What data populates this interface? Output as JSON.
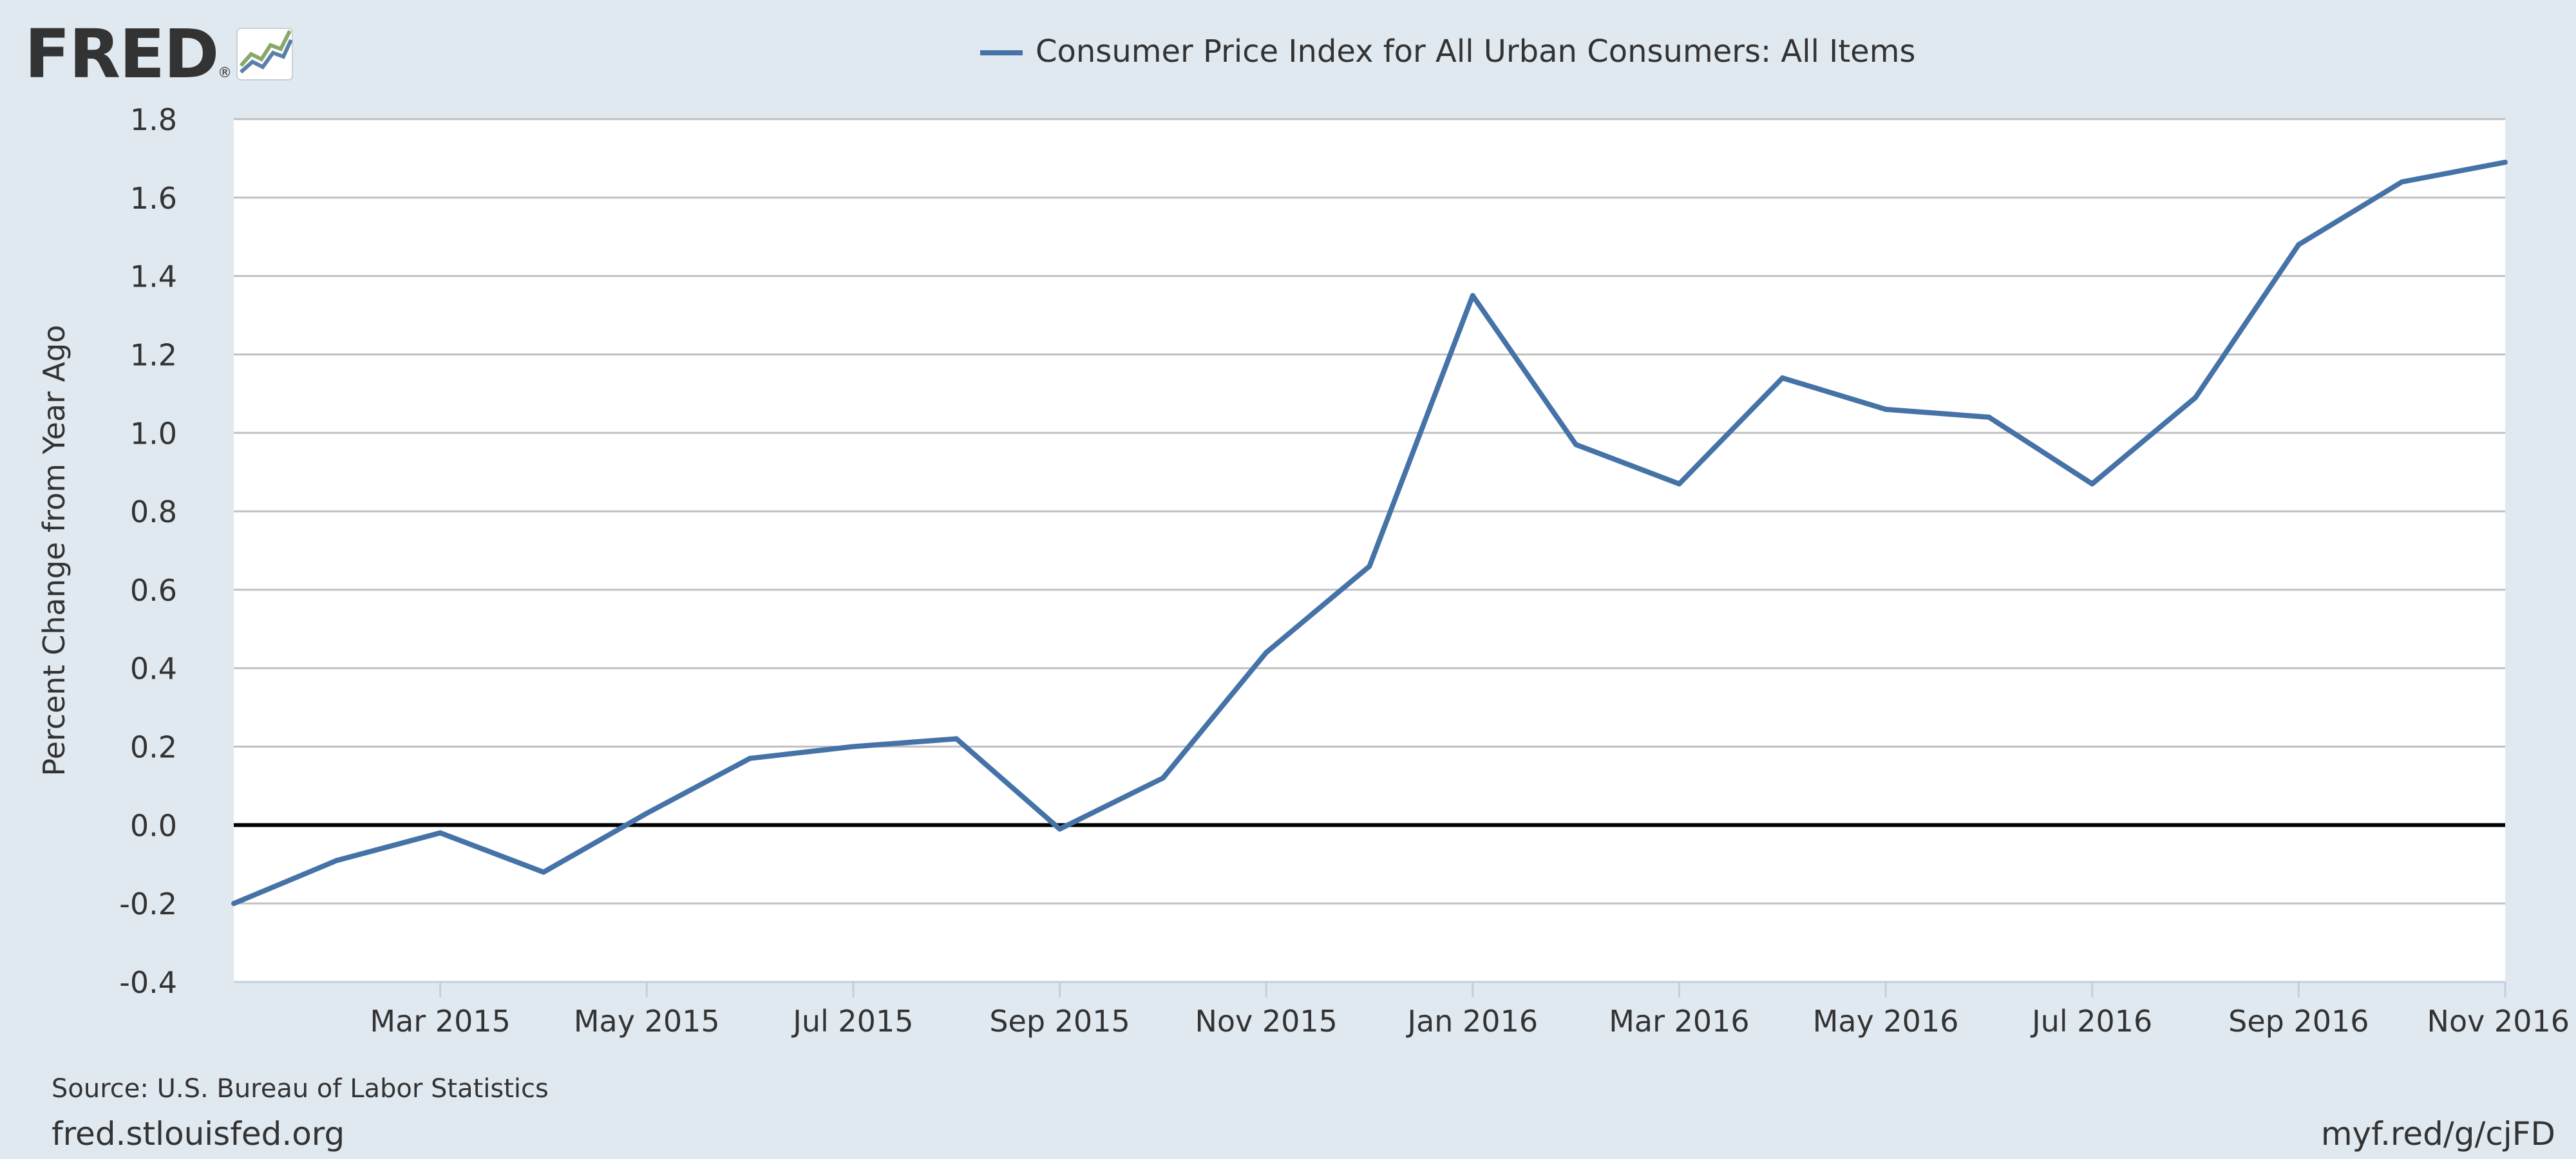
{
  "logo": {
    "text": "FRED",
    "mark": "®",
    "icon": "line-chart-icon"
  },
  "legend": {
    "label": "Consumer Price Index for All Urban Consumers: All Items"
  },
  "footer": {
    "source": "Source: U.S. Bureau of Labor Statistics",
    "site": "fred.stlouisfed.org",
    "short_url": "myf.red/g/cjFD"
  },
  "colors": {
    "background": "#e1e9f0",
    "plot_background": "#ffffff",
    "series": "#4572a7",
    "grid": "#c0c0c0",
    "zero_line": "#000000",
    "text": "#333333",
    "logo": "#231f20"
  },
  "chart_data": {
    "type": "line",
    "title": "",
    "xlabel": "",
    "ylabel": "Percent Change from Year Ago",
    "ylim": [
      -0.4,
      1.8
    ],
    "yticks": [
      "-0.4",
      "-0.2",
      "0.0",
      "0.2",
      "0.4",
      "0.6",
      "0.8",
      "1.0",
      "1.2",
      "1.4",
      "1.6",
      "1.8"
    ],
    "xticks": [
      "Mar 2015",
      "May 2015",
      "Jul 2015",
      "Sep 2015",
      "Nov 2015",
      "Jan 2016",
      "Mar 2016",
      "May 2016",
      "Jul 2016",
      "Sep 2016",
      "Nov 2016"
    ],
    "grid": true,
    "legend_position": "top-center",
    "series": [
      {
        "name": "Consumer Price Index for All Urban Consumers: All Items",
        "x": [
          "2015-01",
          "2015-02",
          "2015-03",
          "2015-04",
          "2015-05",
          "2015-06",
          "2015-07",
          "2015-08",
          "2015-09",
          "2015-10",
          "2015-11",
          "2015-12",
          "2016-01",
          "2016-02",
          "2016-03",
          "2016-04",
          "2016-05",
          "2016-06",
          "2016-07",
          "2016-08",
          "2016-09",
          "2016-10",
          "2016-11"
        ],
        "values": [
          -0.2,
          -0.09,
          -0.02,
          -0.12,
          0.03,
          0.17,
          0.2,
          0.22,
          -0.01,
          0.12,
          0.44,
          0.66,
          1.35,
          0.97,
          0.87,
          1.14,
          1.06,
          1.04,
          0.87,
          1.09,
          1.48,
          1.64,
          1.69
        ]
      }
    ]
  }
}
